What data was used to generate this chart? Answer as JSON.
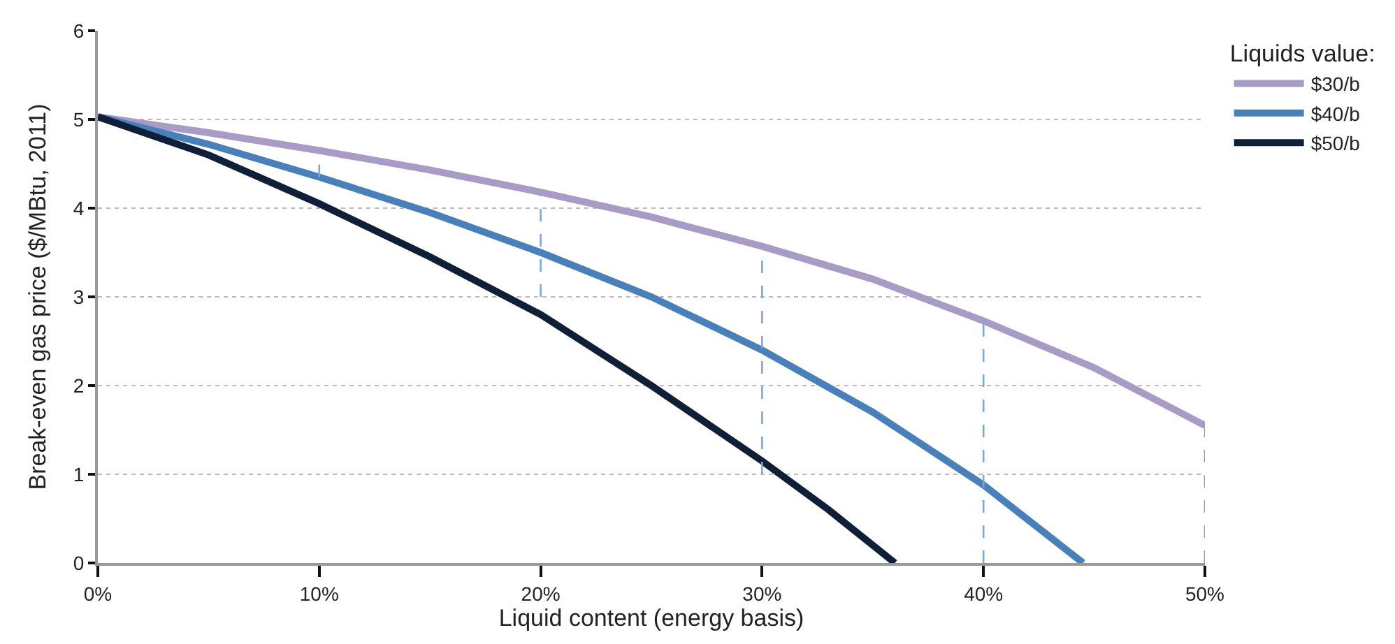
{
  "chart_data": {
    "type": "line",
    "xlabel": "Liquid content (energy basis)",
    "ylabel": "Break-even gas price ($/MBtu, 2011)",
    "legend_title": "Liquids value:",
    "xlim": [
      0,
      50
    ],
    "xticks": [
      {
        "value": 0,
        "label": "0%"
      },
      {
        "value": 10,
        "label": "10%"
      },
      {
        "value": 20,
        "label": "20%"
      },
      {
        "value": 30,
        "label": "30%"
      },
      {
        "value": 40,
        "label": "40%"
      },
      {
        "value": 50,
        "label": "50%"
      }
    ],
    "ylim": [
      0,
      6
    ],
    "yticks": [
      0,
      1,
      2,
      3,
      4,
      5,
      6
    ],
    "grid": "y",
    "legend": "top right",
    "marker": "none",
    "line_style": "solid",
    "series": [
      {
        "name": "$30/b",
        "color": "#a89bc6",
        "x": [
          0,
          5,
          10,
          15,
          20,
          25,
          30,
          35,
          40,
          45,
          50
        ],
        "values": [
          5.03,
          4.85,
          4.65,
          4.43,
          4.18,
          3.9,
          3.57,
          3.2,
          2.73,
          2.2,
          1.55
        ]
      },
      {
        "name": "$40/b",
        "color": "#4a80ba",
        "x": [
          0,
          5,
          10,
          15,
          20,
          25,
          30,
          35,
          40,
          44.5
        ],
        "values": [
          5.03,
          4.72,
          4.35,
          3.95,
          3.5,
          3.0,
          2.4,
          1.7,
          0.88,
          0
        ]
      },
      {
        "name": "$50/b",
        "color": "#0f1f38",
        "x": [
          0,
          5,
          10,
          15,
          20,
          25,
          30,
          33,
          36
        ],
        "values": [
          5.03,
          4.6,
          4.05,
          3.45,
          2.8,
          2.0,
          1.15,
          0.6,
          0
        ]
      },
      {
        "color": "#7fa7d6",
        "line_style": "dashed",
        "x": [
          10,
          10
        ],
        "values": [
          4.35,
          4.65
        ]
      },
      {
        "color": "#7fa7d6",
        "line_style": "dashed",
        "x": [
          20,
          20
        ],
        "values": [
          3.0,
          4.18
        ]
      },
      {
        "color": "#7fa7d6",
        "line_style": "dashed",
        "x": [
          30,
          30
        ],
        "values": [
          1.0,
          3.57
        ]
      },
      {
        "color": "#7fa7d6",
        "line_style": "dashed",
        "x": [
          40,
          40
        ],
        "values": [
          0,
          2.73
        ]
      },
      {
        "color": "#7fa7d6",
        "line_style": "dashed",
        "x": [
          50,
          50
        ],
        "values": [
          0,
          1.55
        ]
      }
    ]
  }
}
